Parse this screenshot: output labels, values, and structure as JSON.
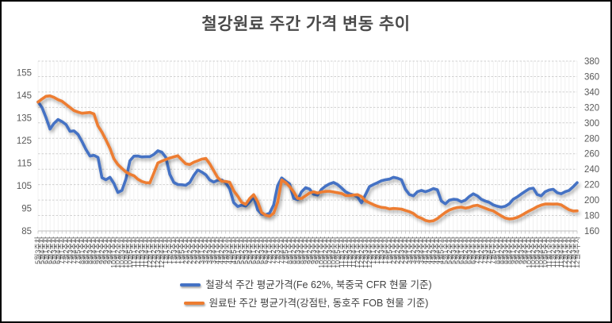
{
  "title": "철강원료 주간 가격 변동 추이",
  "legend": {
    "items": [
      {
        "label": "철광석 주간 평균가격(Fe 62%, 북중국 CFR 현물 기준)",
        "color": "#4472C4"
      },
      {
        "label": "원료탄 주간 평균가격(강점탄, 동호주 FOB 현물 기준)",
        "color": "#ED7D31"
      }
    ]
  },
  "chart_data": {
    "type": "line",
    "title": "철강원료 주간 가격 변동 추이",
    "grid": true,
    "legend_position": "bottom",
    "axes": {
      "left": {
        "min": 85,
        "max": 160,
        "tick_step": 10,
        "ticks": [
          85,
          95,
          105,
          115,
          125,
          135,
          145,
          155
        ]
      },
      "right": {
        "min": 160,
        "max": 380,
        "tick_step": 20,
        "ticks": [
          160,
          180,
          200,
          220,
          240,
          260,
          280,
          300,
          320,
          340,
          360,
          380
        ]
      }
    },
    "categories": [
      "5월3주차",
      "5월4주차",
      "6월1주차",
      "6월2주차",
      "6월3주차",
      "6월4주차",
      "7월1주차",
      "7월2주차",
      "7월3주차",
      "7월4주차",
      "7월5주차",
      "8월1주차",
      "8월2주차",
      "8월3주차",
      "8월4주차",
      "9월1주차",
      "9월2주차",
      "9월3주차",
      "9월4주차",
      "10월1주차",
      "10월2주차",
      "10월3주차",
      "10월4주차",
      "10월5주차",
      "11월1주차",
      "11월2주차",
      "11월3주차",
      "11월4주차",
      "12월1주차",
      "12월2주차",
      "12월3주차",
      "12월4주차",
      "1월1주차",
      "1월2주차",
      "1월3주차",
      "1월4주차",
      "1월5주차",
      "2월1주차",
      "2월2주차",
      "2월3주차",
      "2월4주차",
      "3월1주차",
      "3월2주차",
      "3월3주차",
      "3월4주차",
      "4월1주차",
      "4월2주차",
      "4월3주차",
      "4월4주차",
      "4월5주차",
      "5월1주차",
      "5월2주차",
      "5월3주차",
      "5월4주차",
      "6월1주차",
      "6월2주차",
      "6월3주차",
      "6월4주차",
      "7월1주차",
      "7월2주차",
      "7월3주차",
      "7월4주차",
      "7월5주차",
      "8월1주차",
      "8월2주차",
      "8월3주차",
      "8월4주차",
      "9월1주차",
      "9월2주차",
      "9월3주차",
      "9월4주차",
      "10월1주차",
      "10월2주차",
      "10월3주차",
      "10월4주차",
      "10월5주차",
      "11월1주차",
      "11월2주차",
      "11월3주차",
      "11월4주차",
      "12월1주차",
      "12월2주차",
      "12월3주차",
      "12월4주차",
      "1월1주차",
      "1월2주차",
      "1월3주차",
      "1월4주차",
      "1월5주차",
      "2월1주차",
      "2월2주차",
      "2월3주차",
      "2월4주차",
      "3월1주차",
      "3월2주차",
      "3월3주차",
      "3월4주차",
      "4월1주차",
      "4월2주차",
      "4월3주차",
      "4월4주차",
      "4월5주차",
      "5월1주차",
      "5월2주차",
      "5월3주차",
      "5월4주차",
      "6월1주차",
      "6월2주차",
      "6월3주차",
      "6월4주차",
      "7월1주차",
      "7월2주차",
      "7월3주차",
      "7월4주차",
      "7월5주차",
      "8월1주차",
      "8월2주차",
      "8월3주차",
      "8월4주차",
      "9월1주차",
      "9월2주차",
      "9월3주차",
      "9월4주차",
      "10월1주차",
      "10월2주차",
      "10월3주차",
      "10월4주차",
      "10월5주차",
      "11월1주차",
      "11월2주차",
      "11월3주차",
      "11월4주차",
      "12월1주차",
      "12월2주차",
      "12월3주차",
      "12월4주차"
    ],
    "series": [
      {
        "name": "철광석 주간 평균가격(Fe 62%, 북중국 CFR 현물 기준)",
        "axis": "left",
        "color": "#4472C4",
        "values": [
          142,
          139.5,
          135,
          130,
          132.5,
          134.2,
          133.3,
          132,
          129,
          129.2,
          127.6,
          124.5,
          121,
          118.1,
          118.4,
          117.5,
          108.5,
          107.6,
          108.7,
          106,
          102,
          102.9,
          107.8,
          116,
          118,
          118.1,
          117.7,
          117.8,
          117.8,
          118.8,
          120.4,
          119.8,
          117.5,
          110,
          106.4,
          105.5,
          105.4,
          105.2,
          106.4,
          109.5,
          111.9,
          111,
          109.8,
          107.5,
          106.6,
          107.4,
          107.5,
          106.3,
          103.5,
          97.5,
          95.8,
          96.4,
          96,
          97.8,
          100,
          94.3,
          92.4,
          92.1,
          92.9,
          96.5,
          105,
          108.4,
          107,
          105.8,
          99.4,
          98.8,
          102.3,
          104.1,
          103.5,
          101.2,
          100.8,
          103.4,
          104.8,
          105.8,
          106.4,
          105.5,
          104,
          102.3,
          101.4,
          100.9,
          100,
          97.4,
          101,
          104.6,
          105.5,
          106.3,
          107.2,
          107.6,
          107.9,
          108.7,
          108.3,
          107.6,
          103.4,
          101.1,
          100.5,
          102.3,
          102.9,
          102.3,
          102.9,
          103.7,
          103.2,
          98.2,
          97,
          98.6,
          99,
          98.8,
          97.9,
          98.6,
          100.2,
          101.4,
          100.5,
          99,
          98.2,
          97.6,
          96.5,
          95.9,
          95.5,
          95.9,
          97,
          99,
          100,
          101.3,
          102.5,
          103.6,
          103.9,
          101.1,
          100.5,
          102.3,
          103.1,
          103.4,
          101.9,
          101.4,
          102.3,
          102.9,
          104.5,
          106.3
        ]
      },
      {
        "name": "원료탄 주간 평균가격(강점탄, 동호주 FOB 현물 기준)",
        "axis": "right",
        "color": "#ED7D31",
        "values": [
          327,
          331,
          334.5,
          335,
          333,
          330,
          328,
          324,
          320,
          316,
          314,
          312.5,
          313,
          313.5,
          311.5,
          296,
          288,
          278,
          267,
          253.5,
          246,
          241,
          236.5,
          233.5,
          231.5,
          227,
          224,
          222.5,
          222.3,
          235,
          248,
          250.5,
          252.5,
          254.5,
          256,
          257.5,
          252,
          247,
          246,
          249,
          251,
          253,
          254,
          247,
          238,
          229,
          224.5,
          224,
          223,
          212,
          205,
          197,
          194.5,
          202,
          207,
          198,
          184,
          180.5,
          179,
          183,
          197,
          226,
          222.7,
          217.6,
          210.7,
          202.2,
          202,
          205.6,
          209.1,
          210.7,
          209.1,
          210.5,
          211.2,
          211.4,
          210.5,
          209.5,
          208.5,
          206,
          205.8,
          206.5,
          207,
          204.5,
          199,
          196.5,
          194,
          192,
          190.5,
          190,
          188.5,
          189.1,
          188.8,
          188.3,
          186.5,
          185,
          182.6,
          178.5,
          176.5,
          173.7,
          172.4,
          173.2,
          176,
          180,
          184,
          187,
          189,
          190.3,
          190.8,
          189.5,
          190.5,
          192.5,
          193.3,
          191.5,
          189.5,
          187.5,
          186,
          182.6,
          179.5,
          176.8,
          175.5,
          176,
          177.5,
          180,
          183,
          186,
          188.5,
          191.5,
          193.5,
          194.8,
          195,
          194.7,
          195,
          193.8,
          190.5,
          187.5,
          185.8,
          186
        ]
      }
    ]
  },
  "colors": {
    "grid_h": "#d0d0d0",
    "grid_v": "#ebebeb",
    "axis_line": "#bfbfbf",
    "tick_label": "#595959"
  }
}
